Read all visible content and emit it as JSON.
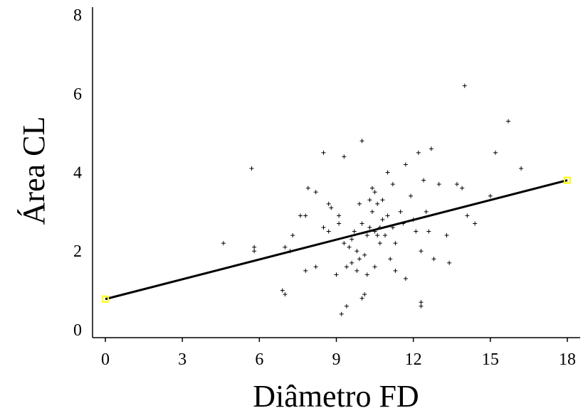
{
  "chart_data": {
    "type": "scatter",
    "title": "",
    "xlabel": "Diâmetro FD",
    "ylabel": "Área CL",
    "xlim": [
      -0.5,
      18.5
    ],
    "ylim": [
      -0.2,
      8.2
    ],
    "xticks": [
      "0",
      "3",
      "6",
      "9",
      "12",
      "15",
      "18"
    ],
    "yticks": [
      "0",
      "2",
      "4",
      "6",
      "8"
    ],
    "grid": false,
    "legend": "none",
    "regression_line": {
      "x": [
        0,
        18
      ],
      "y": [
        0.78,
        3.8
      ]
    },
    "colors": {
      "points": "#000000",
      "line": "#000000",
      "endpoint_marker": "#ffff00"
    },
    "points": [
      [
        4.6,
        2.2
      ],
      [
        5.7,
        4.1
      ],
      [
        5.8,
        2.0
      ],
      [
        5.8,
        2.1
      ],
      [
        6.9,
        1.0
      ],
      [
        7.0,
        0.9
      ],
      [
        7.0,
        2.1
      ],
      [
        7.2,
        2.0
      ],
      [
        7.3,
        2.4
      ],
      [
        7.6,
        2.9
      ],
      [
        7.8,
        2.9
      ],
      [
        7.8,
        1.5
      ],
      [
        7.9,
        3.6
      ],
      [
        8.2,
        3.5
      ],
      [
        8.2,
        1.6
      ],
      [
        8.5,
        4.5
      ],
      [
        8.5,
        2.6
      ],
      [
        8.7,
        2.5
      ],
      [
        8.7,
        3.2
      ],
      [
        8.8,
        3.1
      ],
      [
        9.0,
        1.4
      ],
      [
        9.1,
        2.9
      ],
      [
        9.1,
        2.7
      ],
      [
        9.2,
        0.4
      ],
      [
        9.3,
        4.4
      ],
      [
        9.3,
        2.2
      ],
      [
        9.4,
        0.6
      ],
      [
        9.4,
        1.6
      ],
      [
        9.5,
        2.1
      ],
      [
        9.6,
        2.3
      ],
      [
        9.6,
        1.7
      ],
      [
        9.7,
        2.5
      ],
      [
        9.8,
        2.0
      ],
      [
        9.8,
        1.5
      ],
      [
        9.9,
        3.2
      ],
      [
        9.9,
        1.8
      ],
      [
        10.0,
        4.8
      ],
      [
        10.0,
        2.7
      ],
      [
        10.0,
        0.8
      ],
      [
        10.1,
        0.9
      ],
      [
        10.1,
        1.9
      ],
      [
        10.2,
        2.4
      ],
      [
        10.2,
        1.4
      ],
      [
        10.3,
        3.3
      ],
      [
        10.3,
        2.6
      ],
      [
        10.4,
        3.6
      ],
      [
        10.4,
        3.0
      ],
      [
        10.5,
        3.5
      ],
      [
        10.5,
        2.5
      ],
      [
        10.5,
        1.6
      ],
      [
        10.6,
        3.2
      ],
      [
        10.6,
        2.4
      ],
      [
        10.7,
        2.6
      ],
      [
        10.7,
        2.2
      ],
      [
        10.8,
        3.3
      ],
      [
        10.8,
        2.8
      ],
      [
        10.9,
        2.4
      ],
      [
        11.0,
        4.0
      ],
      [
        11.0,
        2.9
      ],
      [
        11.1,
        1.8
      ],
      [
        11.2,
        3.7
      ],
      [
        11.2,
        2.6
      ],
      [
        11.3,
        2.2
      ],
      [
        11.3,
        1.5
      ],
      [
        11.5,
        3.0
      ],
      [
        11.6,
        2.7
      ],
      [
        11.7,
        4.2
      ],
      [
        11.7,
        1.3
      ],
      [
        11.9,
        3.4
      ],
      [
        12.0,
        2.8
      ],
      [
        12.1,
        2.5
      ],
      [
        12.2,
        4.5
      ],
      [
        12.3,
        2.0
      ],
      [
        12.3,
        0.7
      ],
      [
        12.3,
        0.6
      ],
      [
        12.4,
        3.8
      ],
      [
        12.5,
        3.0
      ],
      [
        12.6,
        2.5
      ],
      [
        12.7,
        4.6
      ],
      [
        12.8,
        1.8
      ],
      [
        13.0,
        3.7
      ],
      [
        13.3,
        2.4
      ],
      [
        13.4,
        1.7
      ],
      [
        13.7,
        3.7
      ],
      [
        13.9,
        3.6
      ],
      [
        14.0,
        6.2
      ],
      [
        14.1,
        2.9
      ],
      [
        14.4,
        2.7
      ],
      [
        15.0,
        3.4
      ],
      [
        15.2,
        4.5
      ],
      [
        15.7,
        5.3
      ],
      [
        16.2,
        4.1
      ]
    ]
  }
}
